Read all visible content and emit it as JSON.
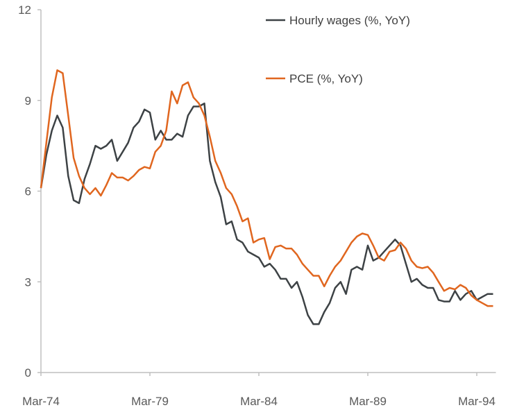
{
  "chart_data": {
    "type": "line",
    "title": "",
    "xlabel": "",
    "ylabel": "",
    "ylim": [
      0,
      12
    ],
    "yticks": [
      "0",
      "3",
      "6",
      "9",
      "12"
    ],
    "ytick_values": [
      0,
      3,
      6,
      9,
      12
    ],
    "xticks": [
      "Mar-74",
      "Mar-79",
      "Mar-84",
      "Mar-89",
      "Mar-94"
    ],
    "xtick_index": [
      0,
      20,
      40,
      60,
      80
    ],
    "x_frequency": "quarterly, Mar-74 to Dec-94",
    "grid": false,
    "legend_placement": "top-right",
    "series": [
      {
        "name": "Hourly wages (%, YoY)",
        "color": "#3d4245",
        "values": [
          6.1,
          7.2,
          8.0,
          8.5,
          8.1,
          6.5,
          5.7,
          5.6,
          6.4,
          6.9,
          7.5,
          7.4,
          7.5,
          7.7,
          7.0,
          7.3,
          7.6,
          8.1,
          8.3,
          8.7,
          8.6,
          7.7,
          8.0,
          7.7,
          7.7,
          7.9,
          7.8,
          8.5,
          8.8,
          8.8,
          8.9,
          7.0,
          6.3,
          5.8,
          4.9,
          5.0,
          4.4,
          4.3,
          4.0,
          3.9,
          3.8,
          3.5,
          3.6,
          3.4,
          3.1,
          3.1,
          2.8,
          3.0,
          2.5,
          1.9,
          1.6,
          1.6,
          2.0,
          2.3,
          2.8,
          3.0,
          2.6,
          3.4,
          3.5,
          3.4,
          4.2,
          3.7,
          3.8,
          4.0,
          4.2,
          4.4,
          4.2,
          3.6,
          3.0,
          3.1,
          2.9,
          2.8,
          2.8,
          2.4,
          2.35,
          2.35,
          2.7,
          2.4,
          2.6,
          2.7,
          2.4,
          2.5,
          2.6,
          2.6
        ]
      },
      {
        "name": "PCE (%, YoY)",
        "color": "#e0661f",
        "values": [
          6.1,
          7.6,
          9.1,
          10.0,
          9.9,
          8.5,
          7.1,
          6.5,
          6.1,
          5.9,
          6.1,
          5.85,
          6.2,
          6.6,
          6.45,
          6.45,
          6.35,
          6.5,
          6.7,
          6.8,
          6.75,
          7.3,
          7.5,
          8.0,
          9.3,
          8.9,
          9.5,
          9.6,
          9.1,
          8.9,
          8.5,
          7.8,
          7.0,
          6.6,
          6.1,
          5.9,
          5.5,
          5.0,
          5.1,
          4.3,
          4.4,
          4.45,
          3.75,
          4.15,
          4.2,
          4.1,
          4.1,
          3.9,
          3.6,
          3.4,
          3.2,
          3.2,
          2.85,
          3.2,
          3.5,
          3.7,
          4.0,
          4.3,
          4.5,
          4.6,
          4.55,
          4.2,
          3.8,
          3.7,
          4.0,
          4.05,
          4.3,
          4.1,
          3.7,
          3.5,
          3.45,
          3.5,
          3.3,
          3.0,
          2.7,
          2.8,
          2.75,
          2.9,
          2.8,
          2.55,
          2.4,
          2.3,
          2.2,
          2.2
        ]
      }
    ]
  }
}
